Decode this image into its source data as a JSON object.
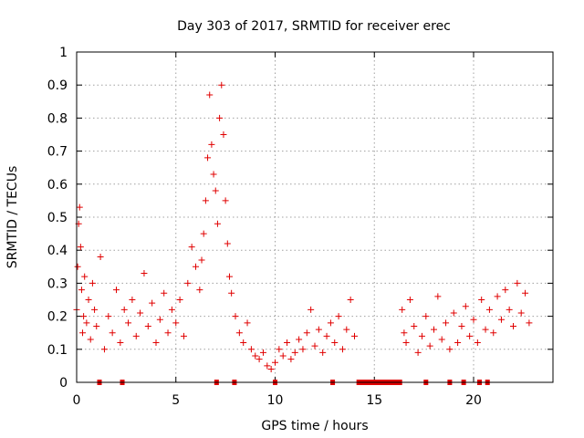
{
  "chart_data": {
    "type": "scatter",
    "title": "Day 303 of 2017, SRMTID for receiver erec",
    "xlabel": "GPS time / hours",
    "ylabel": "SRMTID / TECUs",
    "xlim": [
      0,
      24
    ],
    "ylim": [
      0,
      1
    ],
    "xticks": [
      0,
      5,
      10,
      15,
      20
    ],
    "yticks": [
      0,
      0.1,
      0.2,
      0.3,
      0.4,
      0.5,
      0.6,
      0.7,
      0.8,
      0.9,
      1
    ],
    "grid": true,
    "marker": "+",
    "color": "#e00000",
    "series": [
      {
        "name": "SRMTID",
        "x": [
          0.0,
          0.05,
          0.1,
          0.15,
          0.2,
          0.25,
          0.3,
          0.35,
          0.4,
          0.5,
          0.6,
          0.7,
          0.8,
          0.9,
          1.0,
          1.2,
          1.4,
          1.6,
          1.8,
          2.0,
          2.2,
          2.4,
          2.6,
          2.8,
          3.0,
          3.2,
          3.4,
          3.6,
          3.8,
          4.0,
          4.2,
          4.4,
          4.6,
          4.8,
          5.0,
          5.2,
          5.4,
          5.6,
          5.8,
          6.0,
          6.2,
          6.3,
          6.4,
          6.5,
          6.6,
          6.7,
          6.8,
          6.9,
          7.0,
          7.1,
          7.2,
          7.3,
          7.4,
          7.5,
          7.6,
          7.7,
          7.8,
          8.0,
          8.2,
          8.4,
          8.6,
          8.8,
          9.0,
          9.2,
          9.4,
          9.6,
          9.8,
          10.0,
          10.2,
          10.4,
          10.6,
          10.8,
          11.0,
          11.2,
          11.4,
          11.6,
          11.8,
          12.0,
          12.2,
          12.4,
          12.6,
          12.8,
          13.0,
          13.2,
          13.4,
          13.6,
          13.8,
          14.0,
          16.4,
          16.5,
          16.6,
          16.8,
          17.0,
          17.2,
          17.4,
          17.6,
          17.8,
          18.0,
          18.2,
          18.4,
          18.6,
          18.8,
          19.0,
          19.2,
          19.4,
          19.6,
          19.8,
          20.0,
          20.2,
          20.4,
          20.6,
          20.8,
          21.0,
          21.2,
          21.4,
          21.6,
          21.8,
          22.0,
          22.2,
          22.4,
          22.6,
          22.8
        ],
        "y": [
          0.22,
          0.35,
          0.48,
          0.53,
          0.41,
          0.28,
          0.15,
          0.2,
          0.32,
          0.18,
          0.25,
          0.13,
          0.3,
          0.22,
          0.17,
          0.38,
          0.1,
          0.2,
          0.15,
          0.28,
          0.12,
          0.22,
          0.18,
          0.25,
          0.14,
          0.21,
          0.33,
          0.17,
          0.24,
          0.12,
          0.19,
          0.27,
          0.15,
          0.22,
          0.18,
          0.25,
          0.14,
          0.3,
          0.41,
          0.35,
          0.28,
          0.37,
          0.45,
          0.55,
          0.68,
          0.87,
          0.72,
          0.63,
          0.58,
          0.48,
          0.8,
          0.9,
          0.75,
          0.55,
          0.42,
          0.32,
          0.27,
          0.2,
          0.15,
          0.12,
          0.18,
          0.1,
          0.08,
          0.07,
          0.09,
          0.05,
          0.04,
          0.06,
          0.1,
          0.08,
          0.12,
          0.07,
          0.09,
          0.13,
          0.1,
          0.15,
          0.22,
          0.11,
          0.16,
          0.09,
          0.14,
          0.18,
          0.12,
          0.2,
          0.1,
          0.16,
          0.25,
          0.14,
          0.22,
          0.15,
          0.12,
          0.25,
          0.17,
          0.09,
          0.14,
          0.2,
          0.11,
          0.16,
          0.26,
          0.13,
          0.18,
          0.1,
          0.21,
          0.12,
          0.17,
          0.23,
          0.14,
          0.19,
          0.12,
          0.25,
          0.16,
          0.22,
          0.15,
          0.26,
          0.19,
          0.28,
          0.22,
          0.17,
          0.3,
          0.21,
          0.27,
          0.18
        ]
      }
    ],
    "gap_markers": [
      1.15,
      2.3,
      7.05,
      7.95,
      10.0,
      12.9,
      14.5,
      15.0,
      15.6,
      16.2,
      17.6,
      18.8,
      19.5,
      20.3,
      20.7
    ],
    "gap_bands": [
      [
        14.1,
        16.4
      ]
    ]
  }
}
